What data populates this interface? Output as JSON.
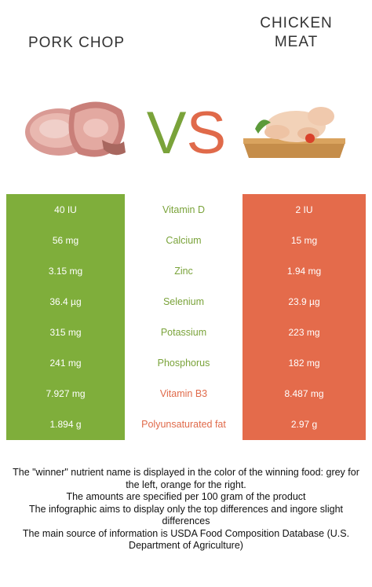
{
  "left_food": {
    "name": "PORK CHOP",
    "image_icon": "pork-chop-image"
  },
  "right_food": {
    "name": "CHICKEN\nMEAT",
    "image_icon": "chicken-meat-image"
  },
  "vs": {
    "v": "V",
    "s": "S"
  },
  "colors": {
    "left": "#7fae3b",
    "right": "#e46b4b",
    "left_text": "#7aa33a",
    "right_text": "#e06a4a"
  },
  "nutrients": [
    {
      "label": "Vitamin D",
      "left": "40 IU",
      "right": "2 IU",
      "winner": "left"
    },
    {
      "label": "Calcium",
      "left": "56 mg",
      "right": "15 mg",
      "winner": "left"
    },
    {
      "label": "Zinc",
      "left": "3.15 mg",
      "right": "1.94 mg",
      "winner": "left"
    },
    {
      "label": "Selenium",
      "left": "36.4 µg",
      "right": "23.9 µg",
      "winner": "left"
    },
    {
      "label": "Potassium",
      "left": "315 mg",
      "right": "223 mg",
      "winner": "left"
    },
    {
      "label": "Phosphorus",
      "left": "241 mg",
      "right": "182 mg",
      "winner": "left"
    },
    {
      "label": "Vitamin B3",
      "left": "7.927 mg",
      "right": "8.487 mg",
      "winner": "right"
    },
    {
      "label": "Polyunsaturated fat",
      "left": "1.894 g",
      "right": "2.97 g",
      "winner": "right"
    }
  ],
  "footer": {
    "line1": "The \"winner\" nutrient name is displayed in the color of the winning food: grey for the left, orange for the right.",
    "line2": "The amounts are specified per 100 gram of the product",
    "line3": "The infographic aims to display only the top differences and ingore slight differences",
    "line4": "The main source of information is USDA Food Composition Database (U.S. Department of Agriculture)"
  }
}
